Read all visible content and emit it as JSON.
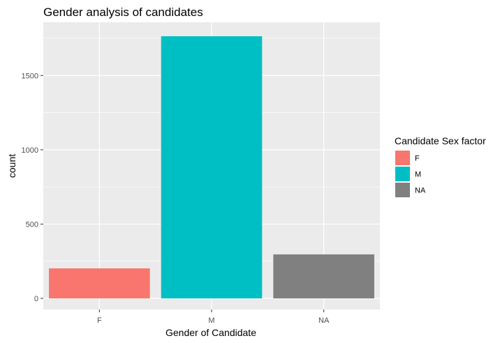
{
  "chart_data": {
    "type": "bar",
    "title": "Gender analysis of candidates",
    "xlabel": "Gender of Candidate",
    "ylabel": "count",
    "categories": [
      "F",
      "M",
      "NA"
    ],
    "values": [
      202,
      1764,
      296
    ],
    "ylim": [
      0,
      1850
    ],
    "y_ticks": [
      0,
      500,
      1000,
      1500
    ],
    "grid": true,
    "legend": {
      "title": "Candidate Sex factor",
      "placement": "right",
      "items": [
        "F",
        "M",
        "NA"
      ]
    },
    "colors": [
      "#F8766D",
      "#00BFC4",
      "#808080"
    ],
    "panel_background": "#EBEBEB",
    "grid_color": "#FFFFFF"
  }
}
